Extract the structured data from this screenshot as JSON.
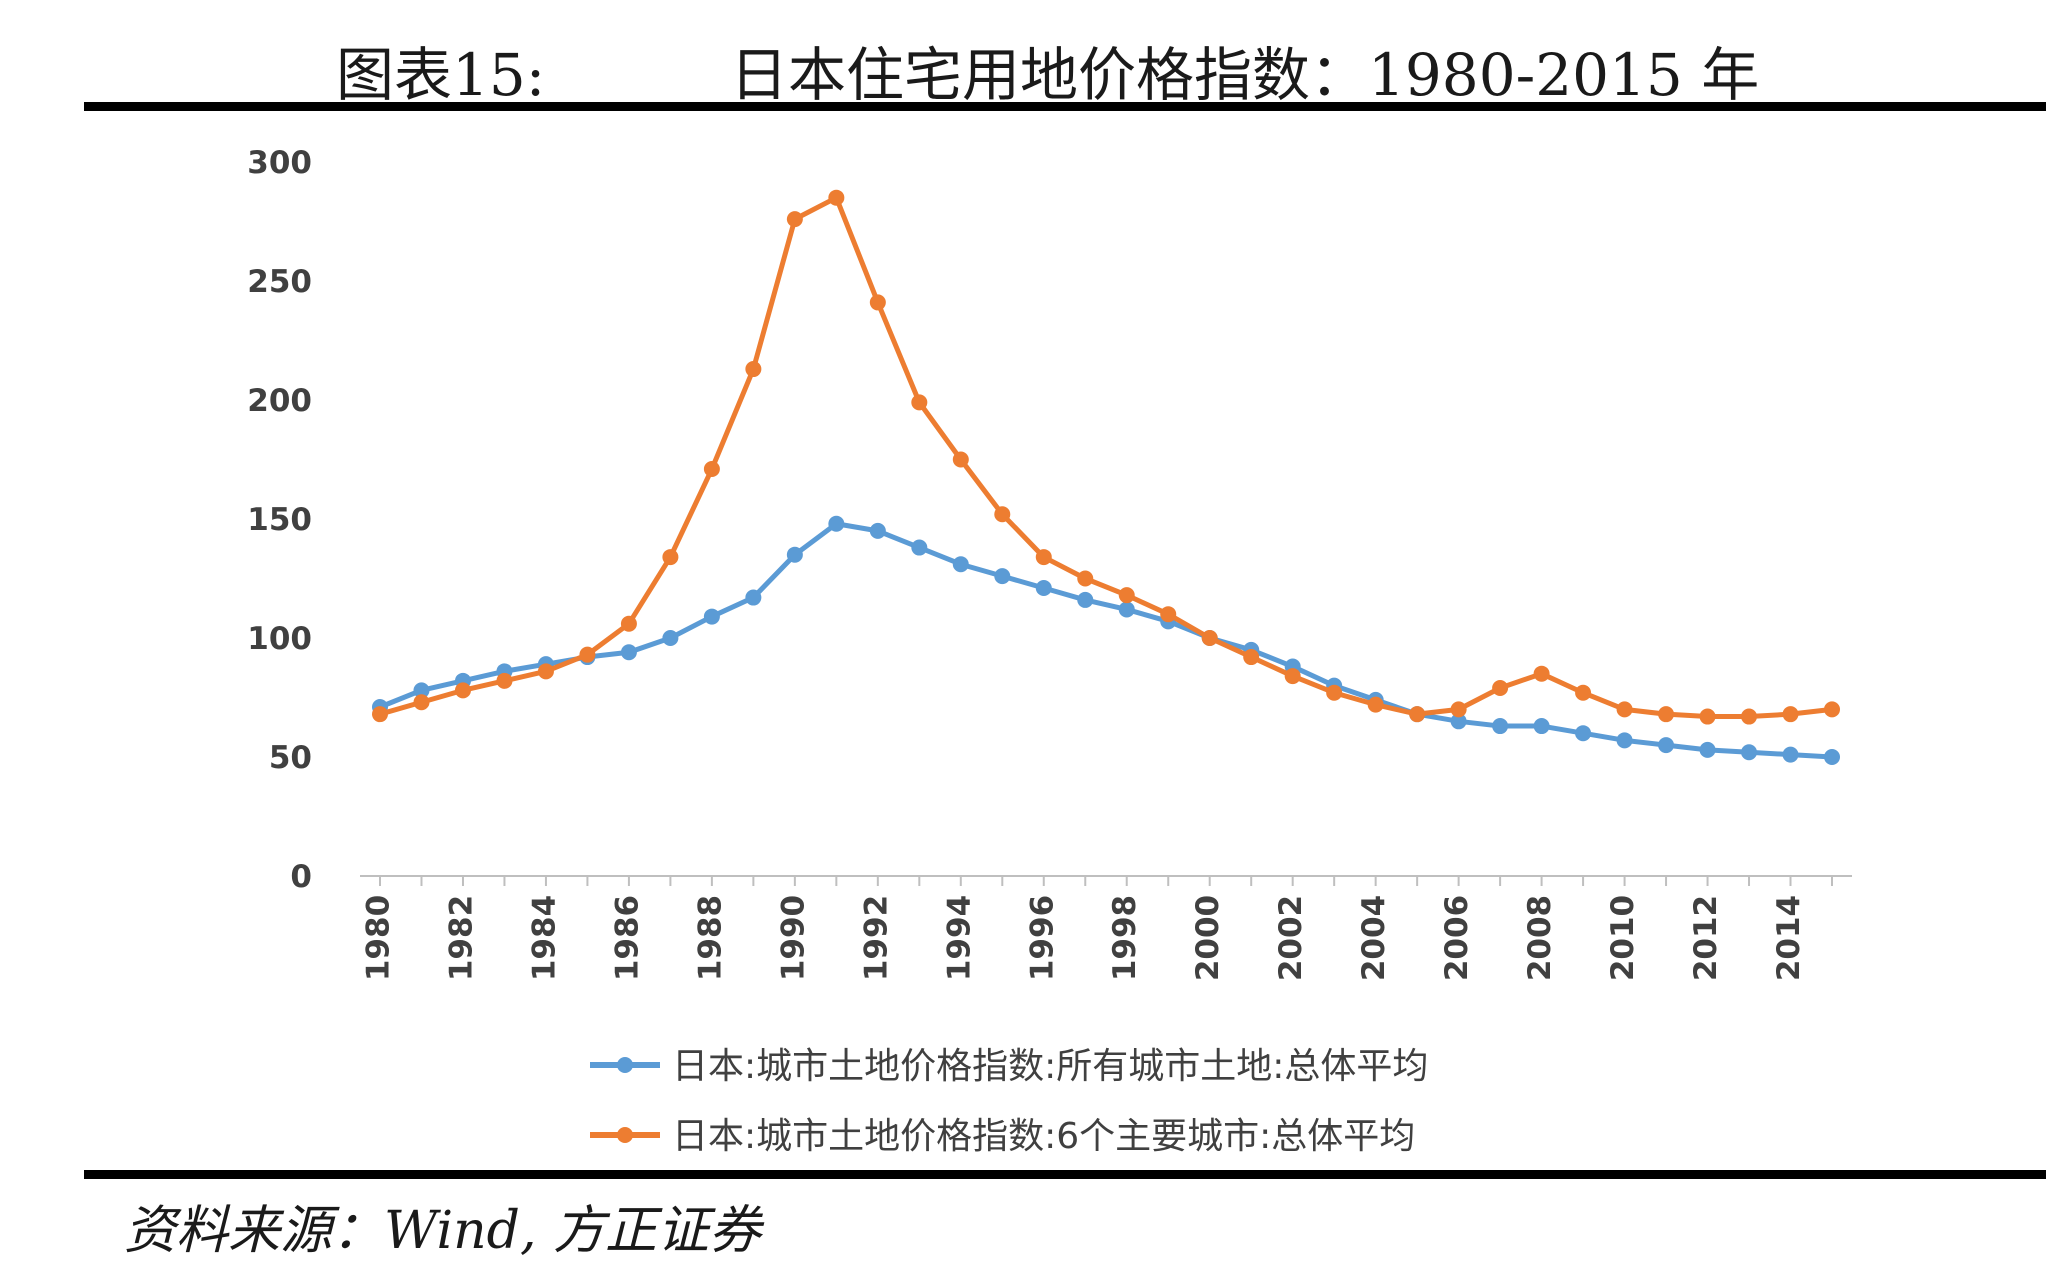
{
  "figure": {
    "label": "图表15:",
    "title": "日本住宅用地价格指数：1980-2015 年",
    "source": "资料来源：Wind, 方正证券"
  },
  "colors": {
    "series_all_cities": "#5b9bd5",
    "series_six_cities": "#ed7d31",
    "axis": "#bfbfbf",
    "rule": "#000000"
  },
  "chart_data": {
    "type": "line",
    "x": [
      1980,
      1981,
      1982,
      1983,
      1984,
      1985,
      1986,
      1987,
      1988,
      1989,
      1990,
      1991,
      1992,
      1993,
      1994,
      1995,
      1996,
      1997,
      1998,
      1999,
      2000,
      2001,
      2002,
      2003,
      2004,
      2005,
      2006,
      2007,
      2008,
      2009,
      2010,
      2011,
      2012,
      2013,
      2014,
      2015
    ],
    "x_tick_labels": [
      "1980",
      "1982",
      "1984",
      "1986",
      "1988",
      "1990",
      "1992",
      "1994",
      "1996",
      "1998",
      "2000",
      "2002",
      "2004",
      "2006",
      "2008",
      "2010",
      "2012",
      "2014"
    ],
    "y_tick_labels": [
      "0",
      "50",
      "100",
      "150",
      "200",
      "250",
      "300"
    ],
    "ylim": [
      0,
      300
    ],
    "grid": false,
    "legend_position": "bottom",
    "series": [
      {
        "name": "日本:城市土地价格指数:所有城市土地:总体平均",
        "color": "#5b9bd5",
        "values": [
          71,
          78,
          82,
          86,
          89,
          92,
          94,
          100,
          109,
          117,
          135,
          148,
          145,
          138,
          131,
          126,
          121,
          116,
          112,
          107,
          100,
          95,
          88,
          80,
          74,
          68,
          65,
          63,
          63,
          60,
          57,
          55,
          53,
          52,
          51,
          50
        ]
      },
      {
        "name": "日本:城市土地价格指数:6个主要城市:总体平均",
        "color": "#ed7d31",
        "values": [
          68,
          73,
          78,
          82,
          86,
          93,
          106,
          134,
          171,
          213,
          276,
          285,
          241,
          199,
          175,
          152,
          134,
          125,
          118,
          110,
          100,
          92,
          84,
          77,
          72,
          68,
          70,
          79,
          85,
          77,
          70,
          68,
          67,
          67,
          68,
          70
        ]
      }
    ]
  }
}
